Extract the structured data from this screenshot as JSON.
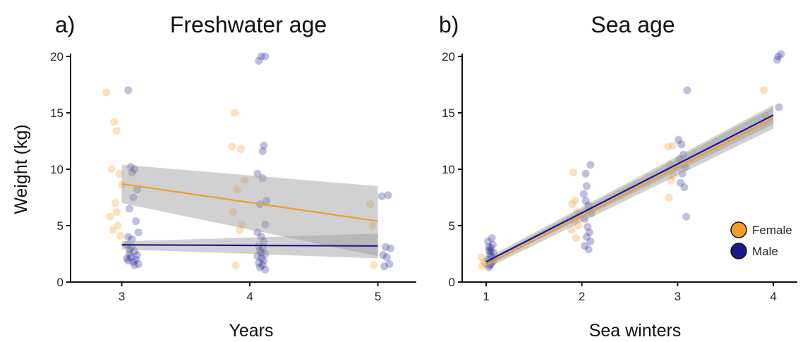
{
  "chart_data": [
    {
      "type": "scatter",
      "panel_label": "a)",
      "title": "Freshwater age",
      "xlabel": "Years",
      "ylabel": "Weight (kg)",
      "x_ticks": [
        "3",
        "4",
        "5"
      ],
      "y_ticks": [
        "0",
        "5",
        "10",
        "15",
        "20"
      ],
      "xlim": [
        2.6,
        5.3
      ],
      "ylim": [
        0,
        20
      ],
      "grid": false,
      "series": [
        {
          "name": "Female",
          "color": "#f39c2d",
          "points": [
            [
              2.88,
              16.8
            ],
            [
              2.94,
              14.2
            ],
            [
              2.96,
              13.4
            ],
            [
              2.92,
              10.0
            ],
            [
              2.98,
              9.6
            ],
            [
              2.95,
              7.0
            ],
            [
              2.91,
              5.8
            ],
            [
              2.97,
              5.0
            ],
            [
              2.93,
              4.6
            ],
            [
              2.99,
              4.1
            ],
            [
              3.0,
              8.6
            ],
            [
              2.96,
              6.2
            ],
            [
              3.88,
              15.0
            ],
            [
              3.86,
              12.0
            ],
            [
              3.93,
              11.8
            ],
            [
              3.96,
              9.0
            ],
            [
              3.9,
              8.2
            ],
            [
              3.87,
              6.2
            ],
            [
              3.94,
              5.1
            ],
            [
              3.92,
              4.6
            ],
            [
              3.89,
              1.5
            ],
            [
              4.94,
              6.9
            ],
            [
              4.96,
              5.0
            ],
            [
              4.97,
              1.5
            ]
          ],
          "fit": [
            [
              3,
              8.7
            ],
            [
              5,
              5.4
            ]
          ],
          "ci": {
            "lower": [
              [
                3,
                7.0
              ],
              [
                5,
                2.3
              ]
            ],
            "upper": [
              [
                3,
                10.4
              ],
              [
                5,
                8.5
              ]
            ]
          }
        },
        {
          "name": "Male",
          "color": "#1a1a8c",
          "points": [
            [
              3.05,
              17.0
            ],
            [
              3.07,
              10.2
            ],
            [
              3.1,
              10.0
            ],
            [
              3.08,
              9.7
            ],
            [
              3.12,
              8.2
            ],
            [
              3.09,
              7.5
            ],
            [
              3.06,
              6.5
            ],
            [
              3.11,
              5.4
            ],
            [
              3.13,
              4.4
            ],
            [
              3.05,
              4.0
            ],
            [
              3.08,
              3.8
            ],
            [
              3.04,
              3.3
            ],
            [
              3.06,
              2.9
            ],
            [
              3.1,
              2.7
            ],
            [
              3.12,
              2.4
            ],
            [
              3.07,
              2.2
            ],
            [
              3.11,
              2.0
            ],
            [
              3.05,
              1.9
            ],
            [
              3.09,
              1.8
            ],
            [
              3.13,
              1.6
            ],
            [
              3.06,
              2.5
            ],
            [
              3.08,
              3.1
            ],
            [
              3.1,
              1.5
            ],
            [
              3.04,
              2.1
            ],
            [
              4.09,
              20.0
            ],
            [
              4.12,
              20.0
            ],
            [
              4.07,
              19.6
            ],
            [
              4.11,
              12.1
            ],
            [
              4.1,
              11.6
            ],
            [
              4.06,
              9.6
            ],
            [
              4.1,
              9.2
            ],
            [
              4.13,
              7.2
            ],
            [
              4.08,
              6.9
            ],
            [
              4.12,
              5.1
            ],
            [
              4.06,
              4.4
            ],
            [
              4.09,
              4.0
            ],
            [
              4.11,
              3.6
            ],
            [
              4.07,
              3.2
            ],
            [
              4.1,
              3.0
            ],
            [
              4.08,
              2.8
            ],
            [
              4.12,
              2.5
            ],
            [
              4.06,
              2.3
            ],
            [
              4.09,
              2.1
            ],
            [
              4.11,
              1.9
            ],
            [
              4.07,
              1.7
            ],
            [
              4.1,
              1.5
            ],
            [
              4.08,
              1.3
            ],
            [
              4.12,
              1.1
            ],
            [
              4.09,
              2.6
            ],
            [
              5.03,
              7.6
            ],
            [
              5.08,
              7.7
            ],
            [
              5.06,
              3.1
            ],
            [
              5.1,
              3.0
            ],
            [
              5.04,
              2.4
            ],
            [
              5.07,
              2.2
            ],
            [
              5.09,
              1.6
            ],
            [
              5.05,
              1.4
            ]
          ],
          "fit": [
            [
              3,
              3.3
            ],
            [
              5,
              3.2
            ]
          ],
          "ci": {
            "lower": [
              [
                3,
                2.9
              ],
              [
                5,
                2.1
              ]
            ],
            "upper": [
              [
                3,
                3.6
              ],
              [
                5,
                4.3
              ]
            ]
          }
        }
      ]
    },
    {
      "type": "scatter",
      "panel_label": "b)",
      "title": "Sea age",
      "xlabel": "Sea winters",
      "ylabel": "",
      "x_ticks": [
        "1",
        "2",
        "3",
        "4"
      ],
      "y_ticks": [
        "0",
        "5",
        "10",
        "15",
        "20"
      ],
      "xlim": [
        0.75,
        4.25
      ],
      "ylim": [
        0,
        20
      ],
      "grid": false,
      "legend": {
        "position": "right",
        "entries": [
          "Female",
          "Male"
        ]
      },
      "series": [
        {
          "name": "Female",
          "color": "#f39c2d",
          "points": [
            [
              0.96,
              1.4
            ],
            [
              0.98,
              1.8
            ],
            [
              0.95,
              2.2
            ],
            [
              0.99,
              1.6
            ],
            [
              1.91,
              9.7
            ],
            [
              1.93,
              7.2
            ],
            [
              1.9,
              6.9
            ],
            [
              1.95,
              6.2
            ],
            [
              1.92,
              5.5
            ],
            [
              1.96,
              5.0
            ],
            [
              1.89,
              4.6
            ],
            [
              1.94,
              3.9
            ],
            [
              2.9,
              12.0
            ],
            [
              2.95,
              12.1
            ],
            [
              2.92,
              10.4
            ],
            [
              2.96,
              9.4
            ],
            [
              2.93,
              9.0
            ],
            [
              2.91,
              7.5
            ],
            [
              3.9,
              17.0
            ],
            [
              3.92,
              14.7
            ]
          ],
          "fit": [
            [
              1,
              1.5
            ],
            [
              4,
              14.5
            ]
          ],
          "ci": {
            "lower": [
              [
                1,
                1.2
              ],
              [
                4,
                13.6
              ]
            ],
            "upper": [
              [
                1,
                1.9
              ],
              [
                4,
                15.5
              ]
            ]
          }
        },
        {
          "name": "Male",
          "color": "#1a1a8c",
          "points": [
            [
              1.03,
              1.3
            ],
            [
              1.05,
              1.6
            ],
            [
              1.07,
              1.8
            ],
            [
              1.02,
              2.0
            ],
            [
              1.06,
              2.2
            ],
            [
              1.04,
              2.4
            ],
            [
              1.08,
              2.6
            ],
            [
              1.03,
              2.8
            ],
            [
              1.05,
              3.0
            ],
            [
              1.07,
              3.3
            ],
            [
              1.02,
              3.6
            ],
            [
              1.06,
              3.9
            ],
            [
              1.04,
              1.5
            ],
            [
              1.08,
              2.1
            ],
            [
              1.05,
              2.7
            ],
            [
              1.03,
              3.1
            ],
            [
              2.02,
              7.8
            ],
            [
              2.05,
              8.5
            ],
            [
              2.09,
              10.4
            ],
            [
              2.04,
              7.2
            ],
            [
              2.07,
              6.8
            ],
            [
              2.1,
              6.1
            ],
            [
              2.03,
              5.6
            ],
            [
              2.06,
              4.9
            ],
            [
              2.08,
              4.4
            ],
            [
              2.05,
              4.0
            ],
            [
              2.09,
              3.6
            ],
            [
              2.03,
              3.2
            ],
            [
              2.07,
              2.9
            ],
            [
              2.04,
              9.6
            ],
            [
              3.01,
              12.6
            ],
            [
              3.04,
              12.2
            ],
            [
              3.06,
              11.3
            ],
            [
              3.02,
              10.9
            ],
            [
              3.08,
              10.2
            ],
            [
              3.05,
              9.6
            ],
            [
              3.03,
              8.8
            ],
            [
              3.07,
              8.4
            ],
            [
              3.1,
              17.0
            ],
            [
              3.09,
              5.8
            ],
            [
              4.05,
              20.0
            ],
            [
              4.08,
              20.2
            ],
            [
              4.04,
              19.7
            ],
            [
              4.06,
              15.5
            ]
          ],
          "fit": [
            [
              1,
              1.8
            ],
            [
              4,
              14.8
            ]
          ],
          "ci": {
            "lower": [
              [
                1,
                1.5
              ],
              [
                4,
                14.0
              ]
            ],
            "upper": [
              [
                1,
                2.1
              ],
              [
                4,
                15.7
              ]
            ]
          }
        }
      ]
    }
  ]
}
